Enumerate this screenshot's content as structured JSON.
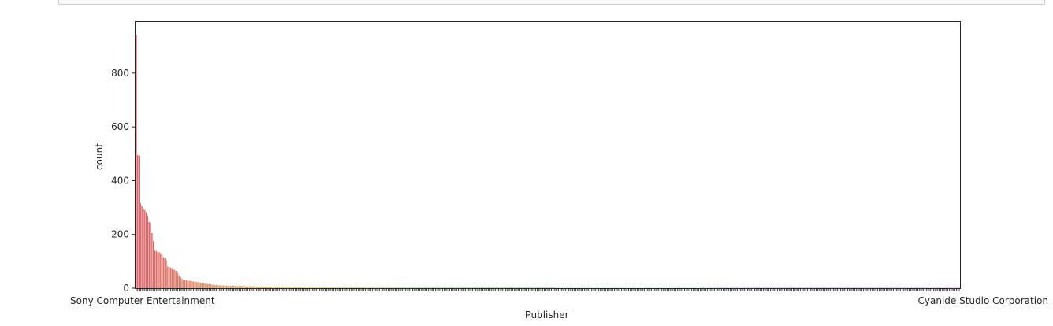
{
  "chart_data": {
    "type": "bar",
    "title": "",
    "xlabel": "Publisher",
    "ylabel": "count",
    "ylim": [
      0,
      990
    ],
    "y_ticks": [
      0,
      200,
      400,
      600,
      800
    ],
    "n_categories": 576,
    "first_label": "Sony Computer Entertainment",
    "last_label": "Cyanide Studio Corporation",
    "grid": false,
    "legend": "none",
    "palette": "seaborn husl (pink → orange → olive → green → teal → blue → purple)",
    "values": [
      943,
      495,
      493,
      316,
      305,
      295,
      290,
      283,
      270,
      246,
      243,
      205,
      176,
      141,
      138,
      135,
      134,
      130,
      125,
      113,
      111,
      103,
      81,
      79,
      77,
      75,
      70,
      67,
      64,
      56,
      47,
      42,
      35,
      32,
      30,
      29,
      28,
      28,
      27,
      26,
      25,
      24,
      24,
      23,
      22,
      20,
      19,
      18,
      17,
      16,
      16,
      15,
      14,
      13,
      13,
      12,
      12,
      11,
      11,
      10,
      10,
      10,
      10,
      10,
      9,
      9,
      9,
      9,
      9,
      9,
      8,
      8,
      8,
      8,
      8,
      8,
      7,
      7,
      7,
      7,
      7,
      7,
      7,
      7,
      6,
      6,
      6,
      6,
      6,
      6,
      6,
      6,
      6,
      6,
      6,
      5,
      5,
      5,
      5,
      5,
      5,
      5,
      5,
      5,
      5,
      5,
      5,
      5,
      5,
      5,
      4,
      4,
      4,
      4,
      4,
      4,
      4,
      4,
      4,
      4,
      4,
      4,
      4,
      4,
      4,
      4,
      4,
      4,
      4,
      4,
      3,
      3,
      3,
      3,
      3,
      3,
      3,
      3,
      3,
      3,
      3,
      3,
      3,
      3,
      3,
      3,
      3,
      3,
      3,
      3,
      3,
      3,
      3,
      3,
      3,
      3,
      3,
      3,
      3,
      3,
      2,
      2,
      2,
      2,
      2,
      2,
      2,
      2,
      2,
      2,
      2,
      2,
      2,
      2,
      2,
      2,
      2,
      2,
      2,
      2,
      2,
      2,
      2,
      2,
      2,
      2,
      2,
      2,
      2,
      2,
      2,
      2,
      2,
      2,
      2,
      2,
      2,
      2,
      2,
      2,
      2,
      2,
      2,
      2,
      2,
      2,
      2,
      2,
      2,
      2,
      2,
      2,
      2,
      2,
      2,
      2,
      2,
      2,
      2,
      2,
      2,
      2,
      2,
      2,
      2,
      2,
      2,
      2,
      2,
      2,
      2,
      2,
      2,
      2,
      2,
      2,
      2,
      2,
      2,
      2,
      2,
      2,
      2,
      2,
      2,
      2,
      2,
      2,
      2,
      2,
      2,
      2,
      2,
      2,
      2,
      2,
      2,
      2,
      2,
      2,
      2,
      2,
      2,
      2,
      2,
      2,
      2,
      2,
      2,
      2,
      2,
      2,
      2,
      2,
      2,
      2,
      2,
      2,
      2,
      2,
      2,
      2,
      2,
      2,
      2,
      2,
      2,
      2,
      2,
      2,
      2,
      2,
      2,
      2,
      1,
      1,
      1,
      1,
      1,
      1,
      1,
      1,
      1,
      1,
      1,
      1,
      1,
      1,
      1,
      1,
      1,
      1,
      1,
      1,
      1,
      1,
      1,
      1,
      1,
      1,
      1,
      1,
      1,
      1,
      1,
      1,
      1,
      1,
      1,
      1,
      1,
      1,
      1,
      1,
      1,
      1,
      1,
      1,
      1,
      1,
      1,
      1,
      1,
      1,
      1,
      1,
      1,
      1,
      1,
      1,
      1,
      1,
      1,
      1,
      1,
      1,
      1,
      1,
      1,
      1,
      1,
      1,
      1,
      1,
      1,
      1,
      1,
      1,
      1,
      1,
      1,
      1,
      1,
      1,
      1,
      1,
      1,
      1,
      1,
      1,
      1,
      1,
      1,
      1,
      1,
      1,
      1,
      1,
      1,
      1,
      1,
      1,
      1,
      1,
      1,
      1,
      1,
      1,
      1,
      1,
      1,
      1,
      1,
      1,
      1,
      1,
      1,
      1,
      1,
      1,
      1,
      1,
      1,
      1,
      1,
      1,
      1,
      1,
      1,
      1,
      1,
      1,
      1,
      1,
      1,
      1,
      1,
      1,
      1,
      1,
      1,
      1,
      1,
      1,
      1,
      1,
      1,
      1,
      1,
      1,
      1,
      1,
      1,
      1,
      1,
      1,
      1,
      1,
      1,
      1,
      1,
      1,
      1,
      1,
      1,
      1,
      1,
      1,
      1,
      1,
      1,
      1,
      1,
      1,
      1,
      1,
      1,
      1,
      1,
      1,
      1,
      1,
      1,
      1,
      1,
      1,
      1,
      1,
      1,
      1,
      1,
      1,
      1,
      1,
      1,
      1,
      1,
      1,
      1,
      1,
      1,
      1,
      1,
      1,
      1,
      1,
      1,
      1,
      1,
      1,
      1,
      1,
      1,
      1,
      1,
      1,
      1,
      1,
      1,
      1,
      1,
      1,
      1,
      1,
      1,
      1,
      1,
      1,
      1,
      1,
      1,
      1,
      1,
      1,
      1,
      1,
      1,
      1,
      1,
      1,
      1,
      1,
      1,
      1,
      1,
      1,
      1,
      1,
      1,
      1,
      1,
      1,
      1,
      1,
      1,
      1,
      1,
      1,
      1,
      1,
      1,
      1,
      1,
      1,
      1,
      1,
      1,
      1,
      1,
      1,
      1,
      1,
      1,
      1,
      1,
      1,
      1,
      1,
      1,
      1,
      1,
      1,
      1,
      1,
      1,
      1,
      1,
      1,
      1,
      1,
      1,
      1,
      1,
      1,
      1,
      1,
      1,
      1,
      1,
      1,
      1,
      1,
      1,
      1,
      1,
      1,
      1,
      1,
      1,
      1,
      1,
      1,
      1,
      1,
      1,
      1
    ]
  }
}
